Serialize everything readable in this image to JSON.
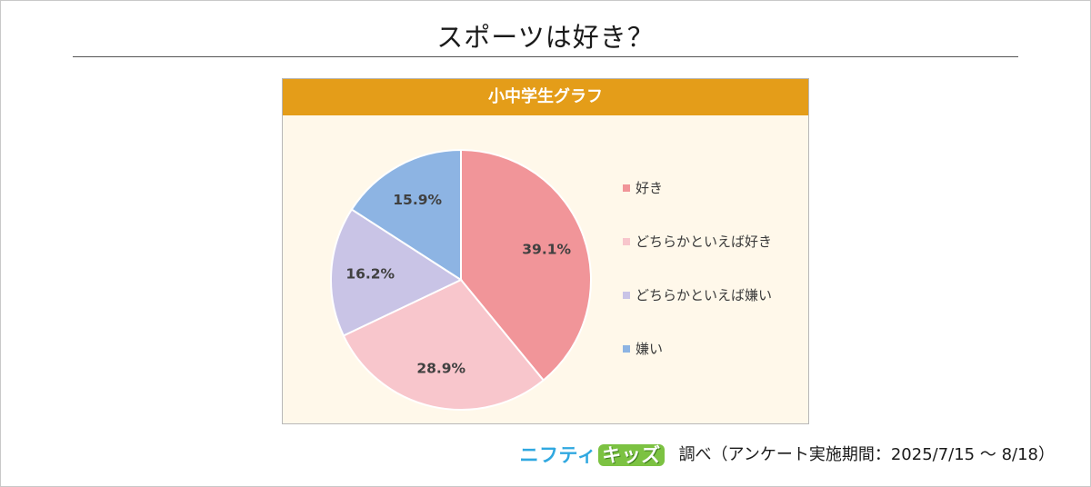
{
  "page": {
    "title": "スポーツは好き？"
  },
  "chart_header": "小中学生グラフ",
  "chart_data": {
    "type": "pie",
    "title": "小中学生グラフ",
    "labels": [
      "好き",
      "どちらかといえば好き",
      "どちらかといえば嫌い",
      "嫌い"
    ],
    "values": [
      39.1,
      28.9,
      16.2,
      15.9
    ],
    "value_labels": [
      "39.1%",
      "28.9%",
      "16.2%",
      "15.9%"
    ],
    "colors": [
      "#f19599",
      "#f8c6cc",
      "#c9c4e6",
      "#8db4e3"
    ],
    "start_angle": "12 o'clock",
    "direction": "clockwise",
    "legend_position": "right"
  },
  "footer": {
    "brand_part1": "ニフティ",
    "brand_part2": "キッズ",
    "note": "調べ（アンケート実施期間：2025/7/15 ～ 8/18）"
  }
}
